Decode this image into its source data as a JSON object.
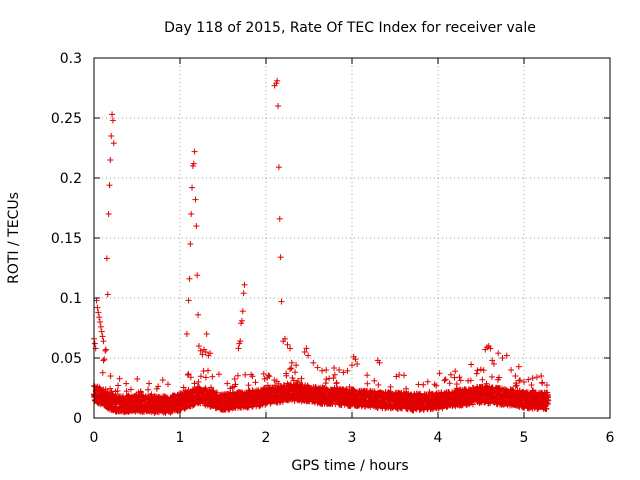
{
  "chart_data": {
    "type": "scatter",
    "title": "Day 118 of 2015, Rate Of TEC Index for receiver vale",
    "xlabel": "GPS time / hours",
    "ylabel": "ROTI / TECUs",
    "xlim": [
      0,
      6
    ],
    "ylim": [
      0,
      0.3
    ],
    "xticks": [
      "0",
      "1",
      "2",
      "3",
      "4",
      "5",
      "6"
    ],
    "yticks": [
      "0",
      "0.05",
      "0.1",
      "0.15",
      "0.2",
      "0.25",
      "0.3"
    ],
    "grid": true,
    "marker": "+",
    "color": "#e00000",
    "series": [
      {
        "name": "ROTI",
        "points": [
          [
            0.0,
            0.066
          ],
          [
            0.01,
            0.062
          ],
          [
            0.02,
            0.058
          ],
          [
            0.03,
            0.098
          ],
          [
            0.04,
            0.092
          ],
          [
            0.05,
            0.088
          ],
          [
            0.06,
            0.084
          ],
          [
            0.07,
            0.08
          ],
          [
            0.08,
            0.076
          ],
          [
            0.09,
            0.072
          ],
          [
            0.1,
            0.068
          ],
          [
            0.11,
            0.064
          ],
          [
            0.11,
            0.048
          ],
          [
            0.12,
            0.049
          ],
          [
            0.13,
            0.056
          ],
          [
            0.14,
            0.057
          ],
          [
            0.15,
            0.133
          ],
          [
            0.16,
            0.103
          ],
          [
            0.17,
            0.17
          ],
          [
            0.18,
            0.194
          ],
          [
            0.19,
            0.215
          ],
          [
            0.2,
            0.235
          ],
          [
            0.21,
            0.253
          ],
          [
            0.22,
            0.248
          ],
          [
            0.23,
            0.229
          ],
          [
            1.08,
            0.07
          ],
          [
            1.1,
            0.098
          ],
          [
            1.11,
            0.116
          ],
          [
            1.12,
            0.145
          ],
          [
            1.13,
            0.17
          ],
          [
            1.14,
            0.192
          ],
          [
            1.15,
            0.21
          ],
          [
            1.16,
            0.212
          ],
          [
            1.17,
            0.222
          ],
          [
            1.18,
            0.182
          ],
          [
            1.19,
            0.16
          ],
          [
            1.2,
            0.119
          ],
          [
            1.21,
            0.086
          ],
          [
            1.22,
            0.06
          ],
          [
            1.24,
            0.056
          ],
          [
            1.26,
            0.053
          ],
          [
            1.28,
            0.057
          ],
          [
            1.3,
            0.055
          ],
          [
            1.31,
            0.07
          ],
          [
            1.33,
            0.052
          ],
          [
            1.35,
            0.054
          ],
          [
            1.68,
            0.058
          ],
          [
            1.69,
            0.062
          ],
          [
            1.7,
            0.064
          ],
          [
            1.71,
            0.079
          ],
          [
            1.72,
            0.081
          ],
          [
            1.73,
            0.089
          ],
          [
            1.74,
            0.104
          ],
          [
            1.75,
            0.111
          ],
          [
            2.1,
            0.277
          ],
          [
            2.12,
            0.279
          ],
          [
            2.13,
            0.281
          ],
          [
            2.14,
            0.26
          ],
          [
            2.15,
            0.209
          ],
          [
            2.16,
            0.166
          ],
          [
            2.17,
            0.134
          ],
          [
            2.18,
            0.097
          ],
          [
            2.2,
            0.064
          ],
          [
            2.22,
            0.066
          ],
          [
            2.25,
            0.061
          ],
          [
            2.28,
            0.058
          ],
          [
            2.3,
            0.046
          ],
          [
            2.35,
            0.044
          ],
          [
            2.45,
            0.055
          ],
          [
            2.47,
            0.058
          ],
          [
            2.49,
            0.052
          ],
          [
            2.55,
            0.046
          ],
          [
            2.6,
            0.042
          ],
          [
            2.7,
            0.04
          ],
          [
            2.8,
            0.036
          ],
          [
            2.85,
            0.04
          ],
          [
            2.9,
            0.038
          ],
          [
            3.0,
            0.044
          ],
          [
            3.02,
            0.051
          ],
          [
            3.04,
            0.049
          ],
          [
            3.06,
            0.045
          ],
          [
            3.3,
            0.048
          ],
          [
            3.32,
            0.046
          ],
          [
            4.15,
            0.036
          ],
          [
            4.2,
            0.039
          ],
          [
            4.25,
            0.034
          ],
          [
            4.35,
            0.031
          ],
          [
            4.45,
            0.037
          ],
          [
            4.55,
            0.057
          ],
          [
            4.57,
            0.059
          ],
          [
            4.59,
            0.06
          ],
          [
            4.61,
            0.058
          ],
          [
            4.63,
            0.048
          ],
          [
            4.65,
            0.045
          ],
          [
            4.7,
            0.054
          ],
          [
            4.75,
            0.05
          ],
          [
            4.8,
            0.052
          ],
          [
            4.85,
            0.04
          ],
          [
            4.9,
            0.035
          ],
          [
            5.0,
            0.03
          ],
          [
            5.05,
            0.032
          ],
          [
            5.15,
            0.034
          ],
          [
            5.2,
            0.035
          ]
        ],
        "band": [
          [
            0.0,
            0.022
          ],
          [
            0.1,
            0.018
          ],
          [
            0.2,
            0.014
          ],
          [
            0.3,
            0.012
          ],
          [
            0.5,
            0.013
          ],
          [
            0.7,
            0.012
          ],
          [
            0.9,
            0.012
          ],
          [
            1.0,
            0.014
          ],
          [
            1.1,
            0.016
          ],
          [
            1.2,
            0.02
          ],
          [
            1.3,
            0.018
          ],
          [
            1.5,
            0.014
          ],
          [
            1.7,
            0.016
          ],
          [
            1.9,
            0.017
          ],
          [
            2.1,
            0.02
          ],
          [
            2.3,
            0.022
          ],
          [
            2.5,
            0.021
          ],
          [
            2.7,
            0.019
          ],
          [
            2.9,
            0.018
          ],
          [
            3.1,
            0.017
          ],
          [
            3.3,
            0.016
          ],
          [
            3.5,
            0.015
          ],
          [
            3.7,
            0.014
          ],
          [
            3.9,
            0.014
          ],
          [
            4.1,
            0.016
          ],
          [
            4.3,
            0.018
          ],
          [
            4.5,
            0.02
          ],
          [
            4.7,
            0.019
          ],
          [
            4.9,
            0.017
          ],
          [
            5.1,
            0.015
          ],
          [
            5.28,
            0.015
          ]
        ]
      }
    ]
  }
}
